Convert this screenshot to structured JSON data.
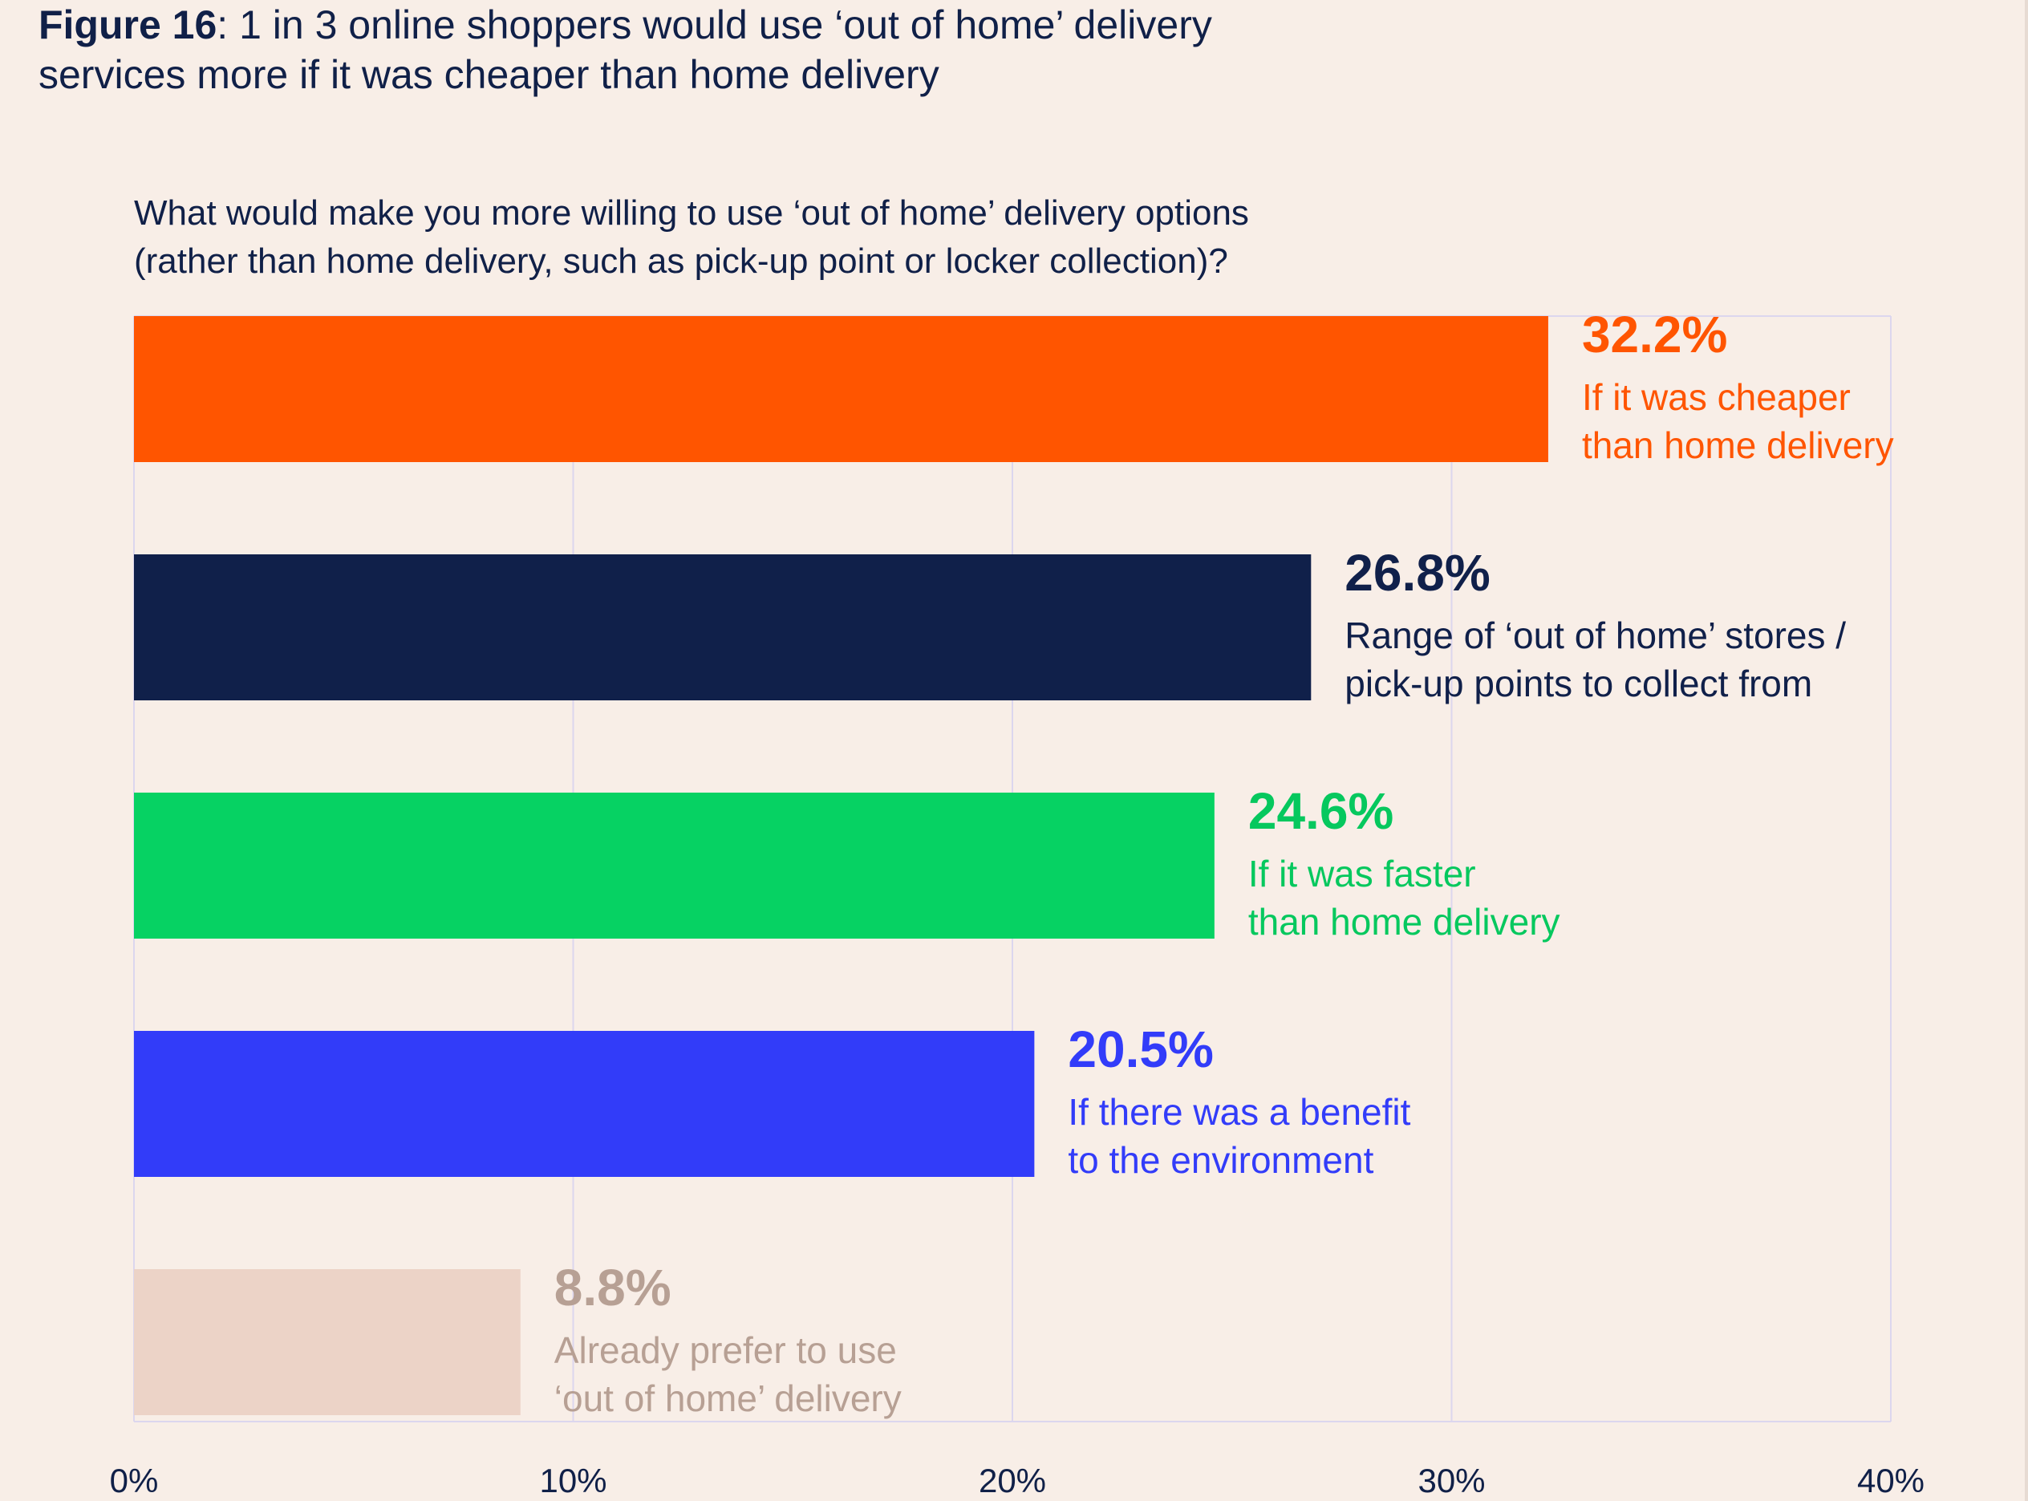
{
  "figure": {
    "number": "Figure 16",
    "title": ": 1 in 3 online shoppers would use ‘out of home’ delivery",
    "title_line2": "services more if it was cheaper than home delivery"
  },
  "chart_data": {
    "type": "bar",
    "orientation": "horizontal",
    "title": "What would make you more willing to use ‘out of home’ delivery options",
    "subtitle": "(rather than home delivery, such as pick-up point or locker collection)?",
    "xlim": [
      0,
      40
    ],
    "ticks": [
      "0%",
      "10%",
      "20%",
      "30%",
      "40%"
    ],
    "tick_values": [
      0,
      10,
      20,
      30,
      40
    ],
    "grid": true,
    "bars": [
      {
        "value": 32.2,
        "value_label": "32.2%",
        "label_lines": [
          "If it was cheaper",
          "than home delivery"
        ],
        "color": "#ff5500",
        "text_color": "#ff5500",
        "label_bold": true
      },
      {
        "value": 26.8,
        "value_label": "26.8%",
        "label_lines": [
          "Range of ‘out of home’ stores /",
          "pick-up points to collect from"
        ],
        "color": "#10204a",
        "text_color": "#10204a",
        "label_bold": true
      },
      {
        "value": 24.6,
        "value_label": "24.6%",
        "label_lines": [
          "If it was faster",
          "than home delivery"
        ],
        "color": "#06d263",
        "text_color": "#06c85e",
        "label_bold": true
      },
      {
        "value": 20.5,
        "value_label": "20.5%",
        "label_lines": [
          "If there was a benefit",
          "to the environment"
        ],
        "color": "#323cf9",
        "text_color": "#323cf9",
        "label_bold": true
      },
      {
        "value": 8.8,
        "value_label": "8.8%",
        "label_lines": [
          "Already prefer to use",
          "‘out of home’ delivery"
        ],
        "color": "#ecd3c7",
        "text_color": "#b7a094",
        "label_bold": true
      }
    ]
  }
}
